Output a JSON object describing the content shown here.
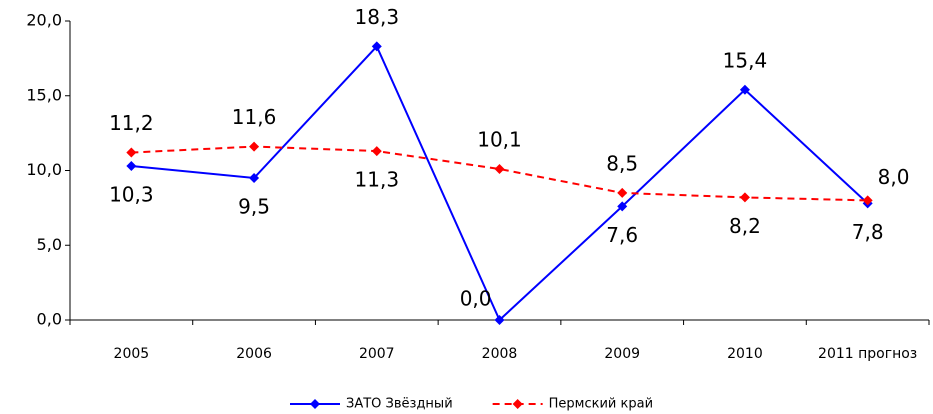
{
  "chart_data": {
    "type": "line",
    "categories": [
      "2005",
      "2006",
      "2007",
      "2008",
      "2009",
      "2010",
      "2011 прогноз"
    ],
    "series": [
      {
        "name": "ЗАТО Звёздный",
        "color": "#0000ff",
        "dashed": false,
        "values": [
          10.3,
          9.5,
          18.3,
          0.0,
          7.6,
          15.4,
          7.8
        ],
        "value_labels": [
          "10,3",
          "9,5",
          "18,3",
          "0,0",
          "7,6",
          "15,4",
          "7,8"
        ]
      },
      {
        "name": "Пермский край",
        "color": "#ff0000",
        "dashed": true,
        "values": [
          11.2,
          11.6,
          11.3,
          10.1,
          8.5,
          8.2,
          8.0
        ],
        "value_labels": [
          "11,2",
          "11,6",
          "11,3",
          "10,1",
          "8,5",
          "8,2",
          "8,0"
        ]
      }
    ],
    "ylim": [
      0,
      20
    ],
    "yticks": [
      {
        "value": 0,
        "label": "0,0"
      },
      {
        "value": 5,
        "label": "5,0"
      },
      {
        "value": 10,
        "label": "10,0"
      },
      {
        "value": 15,
        "label": "15,0"
      },
      {
        "value": 20,
        "label": "20,0"
      }
    ],
    "grid": false,
    "legend": "bottom"
  }
}
